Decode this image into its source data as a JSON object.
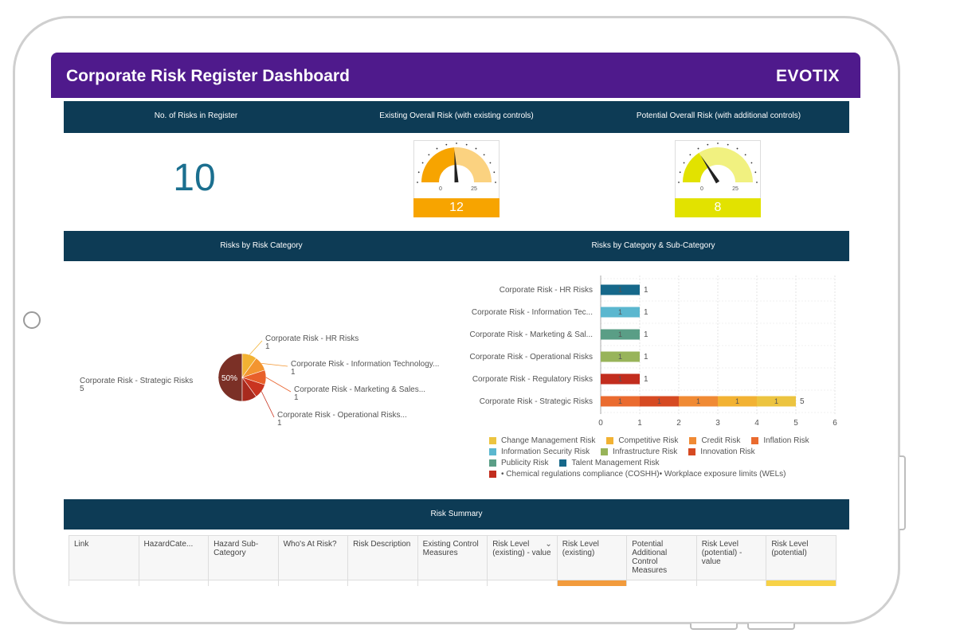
{
  "header": {
    "title": "Corporate Risk Register Dashboard",
    "brand": "EVOTIX"
  },
  "kpi_bar": {
    "risks_count_label": "No. of Risks in Register",
    "existing_label": "Existing Overall Risk (with existing controls)",
    "potential_label": "Potential Overall Risk (with additional controls)"
  },
  "risks_count": "10",
  "gauges": {
    "existing": {
      "value": "12",
      "min": "0",
      "max": "25",
      "color": "#f7a400"
    },
    "potential": {
      "value": "8",
      "min": "0",
      "max": "25",
      "color": "#e2e200"
    }
  },
  "chart_bar_labels": {
    "by_category": "Risks by Risk Category",
    "by_subcategory": "Risks by Category & Sub-Category"
  },
  "chart_data": [
    {
      "type": "pie",
      "center_label": "50%",
      "slices": [
        {
          "label": "Corporate Risk - Strategic Risks",
          "value": 5,
          "color": "#7b3026"
        },
        {
          "label": "Corporate Risk - HR Risks",
          "value": 1,
          "color": "#f2b233"
        },
        {
          "label": "Corporate Risk - Information Technology...",
          "value": 1,
          "color": "#f39530"
        },
        {
          "label": "Corporate Risk - Marketing & Sales...",
          "value": 1,
          "color": "#e8602a"
        },
        {
          "label": "Corporate Risk - Operational Risks...",
          "value": 1,
          "color": "#c93420"
        },
        {
          "label": "",
          "value": 1,
          "color": "#a82a1e"
        }
      ]
    },
    {
      "type": "bar",
      "orientation": "horizontal",
      "stacked": true,
      "categories": [
        "Corporate Risk - HR Risks",
        "Corporate Risk - Information Tec...",
        "Corporate Risk - Marketing & Sal...",
        "Corporate Risk - Operational Risks",
        "Corporate Risk - Regulatory Risks",
        "Corporate Risk - Strategic Risks"
      ],
      "segments": [
        [
          {
            "series": "Talent Management Risk",
            "value": 1
          }
        ],
        [
          {
            "series": "Information Security Risk",
            "value": 1
          }
        ],
        [
          {
            "series": "Publicity Risk",
            "value": 1
          }
        ],
        [
          {
            "series": "Infrastructure Risk",
            "value": 1
          }
        ],
        [
          {
            "series": "• Chemical regulations compliance (COSHH)• Workplace exposure limits (WELs)",
            "value": 1
          }
        ],
        [
          {
            "series": "Inflation Risk",
            "value": 1
          },
          {
            "series": "Innovation Risk",
            "value": 1
          },
          {
            "series": "Credit Risk",
            "value": 1
          },
          {
            "series": "Competitive Risk",
            "value": 1
          },
          {
            "series": "Change Management Risk",
            "value": 1
          }
        ]
      ],
      "totals": [
        "1",
        "1",
        "1",
        "1",
        "1",
        "5"
      ],
      "xlim": [
        0,
        6
      ],
      "xticks": [
        "0",
        "1",
        "2",
        "3",
        "4",
        "5",
        "6"
      ],
      "grid": true,
      "series": [
        {
          "name": "Change Management Risk",
          "color": "#ecc440"
        },
        {
          "name": "Competitive Risk",
          "color": "#f2b233"
        },
        {
          "name": "Credit Risk",
          "color": "#f08a34"
        },
        {
          "name": "Inflation Risk",
          "color": "#ea6b2f"
        },
        {
          "name": "Information Security Risk",
          "color": "#5bb7cf"
        },
        {
          "name": "Infrastructure Risk",
          "color": "#98b45a"
        },
        {
          "name": "Innovation Risk",
          "color": "#d64a22"
        },
        {
          "name": "Publicity Risk",
          "color": "#5a9e86"
        },
        {
          "name": "Talent Management Risk",
          "color": "#16688a"
        },
        {
          "name": "• Chemical regulations compliance (COSHH)• Workplace exposure limits (WELs)",
          "color": "#c22d1e"
        }
      ]
    }
  ],
  "summary": {
    "title": "Risk Summary",
    "columns": [
      "Link",
      "HazardCate...",
      "Hazard Sub-Category",
      "Who's At Risk?",
      "Risk Description",
      "Existing Control Measures",
      "Risk Level (existing) - value",
      "Risk Level (existing)",
      "Potential Additional Control Measures",
      "Risk Level (potential) - value",
      "Risk Level (potential)"
    ],
    "sort_icon": "chevron-down-icon"
  }
}
